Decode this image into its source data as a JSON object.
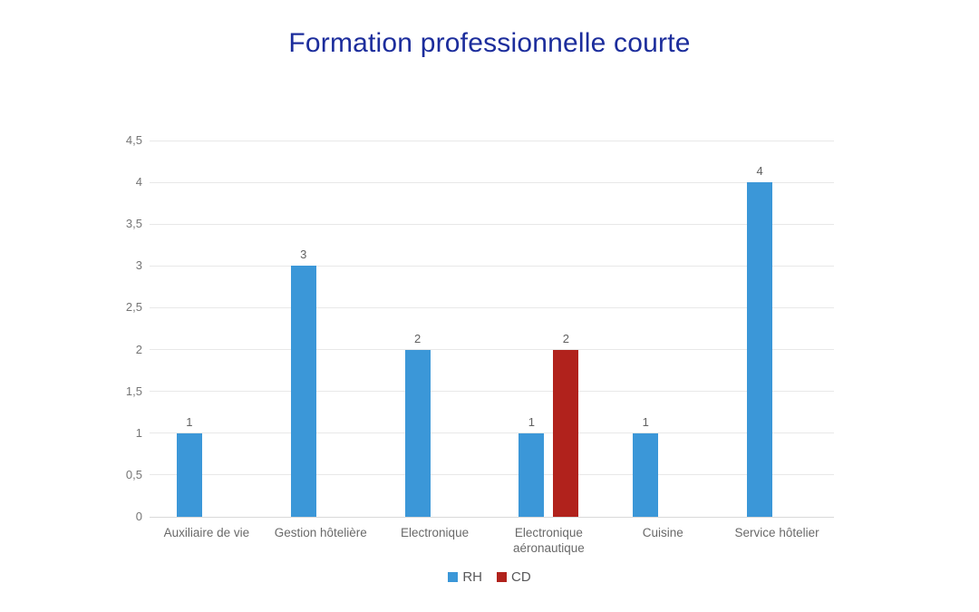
{
  "title": "Formation professionnelle courte",
  "colors": {
    "title": "#1c2d9c",
    "grid": "#e8e8e8",
    "baseline": "#d9d9d9",
    "axis_text": "#757575",
    "category_text": "#696969",
    "value_label_text": "#616161",
    "legend_text": "#58585a",
    "background": "#ffffff",
    "series_rh": "#3b97d8",
    "series_cd": "#b1221c"
  },
  "chart_data": {
    "type": "bar",
    "title": "Formation professionnelle courte",
    "categories": [
      "Auxiliaire de vie",
      "Gestion hôtelière",
      "Electronique",
      "Electronique aéronautique",
      "Cuisine",
      "Service hôtelier"
    ],
    "series": [
      {
        "name": "RH",
        "color": "#3b97d8",
        "values": [
          1,
          3,
          2,
          1,
          1,
          4
        ]
      },
      {
        "name": "CD",
        "color": "#b1221c",
        "values": [
          null,
          null,
          null,
          2,
          null,
          null
        ]
      }
    ],
    "ylim": [
      0,
      4.5
    ],
    "ytick_step": 0.5,
    "ytick_labels": [
      "0",
      "0,5",
      "1",
      "1,5",
      "2",
      "2,5",
      "3",
      "3,5",
      "4",
      "4,5"
    ],
    "grid": true,
    "value_labels": true,
    "legend_position": "bottom",
    "xlabel": "",
    "ylabel": ""
  }
}
